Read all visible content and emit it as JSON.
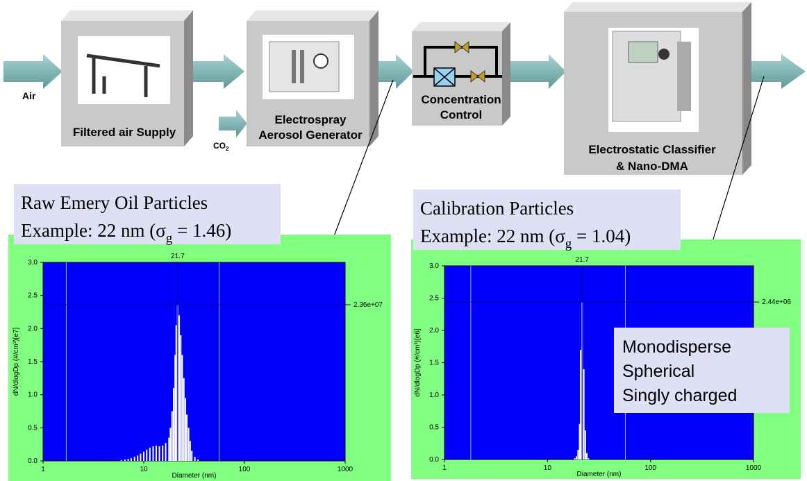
{
  "diagram": {
    "nodes": [
      {
        "lines": [
          "Filtered air Supply"
        ]
      },
      {
        "lines": [
          "Electrospray",
          "Aerosol Generator"
        ]
      },
      {
        "lines": [
          "Concentration",
          "Control"
        ]
      },
      {
        "lines": [
          "Electrostatic Classifier",
          "& Nano-DMA"
        ]
      }
    ],
    "inputs": {
      "air": "Air",
      "co2": [
        "CO",
        "2"
      ]
    }
  },
  "chart_data": [
    {
      "type": "bar",
      "title": "Raw Emery Oil Particles",
      "subtitle_parts": [
        "Example: 22 nm (σ",
        "g",
        " = 1.46)"
      ],
      "xlabel": "Diameter (nm)",
      "ylabel": "dN/dlogDp (#/cm³)[e7]",
      "xscale": "log",
      "xlim": [
        1,
        1000
      ],
      "xticks": [
        1,
        10,
        100,
        1000
      ],
      "ylim": [
        0,
        3
      ],
      "yticks": [
        {
          "value": 0,
          "label": "0.0"
        },
        {
          "value": 0.5,
          "label": "0.5"
        },
        {
          "value": 1,
          "label": "1.0"
        },
        {
          "value": 1.5,
          "label": "1.5"
        },
        {
          "value": 2,
          "label": "2.0"
        },
        {
          "value": 2.5,
          "label": "2.5"
        },
        {
          "value": 3,
          "label": "3.0"
        }
      ],
      "x": [
        6.0,
        6.5,
        7.0,
        7.5,
        8.1,
        8.7,
        9.3,
        10.0,
        10.7,
        11.5,
        12.4,
        13.3,
        14.3,
        15.4,
        16.5,
        17.8,
        18.4,
        19.1,
        19.8,
        20.5,
        21.0,
        21.7,
        22.5,
        23.3,
        24.1,
        25.0,
        25.9,
        26.8,
        27.9,
        28.9,
        30.0,
        32.2,
        34.6
      ],
      "values": [
        0.01,
        0.02,
        0.03,
        0.04,
        0.06,
        0.08,
        0.11,
        0.14,
        0.17,
        0.2,
        0.22,
        0.23,
        0.22,
        0.23,
        0.27,
        0.35,
        0.5,
        0.75,
        1.1,
        1.6,
        2.05,
        2.36,
        2.2,
        1.9,
        1.6,
        1.25,
        0.95,
        0.7,
        0.5,
        0.3,
        0.15,
        0.06,
        0.02
      ],
      "color": "#ffffff",
      "background": "#0000ff",
      "peak": {
        "x": 21.7
      },
      "level": {
        "value": 2.36,
        "label": "2.36e+07"
      },
      "cursors": [
        1.7,
        56
      ]
    },
    {
      "type": "bar",
      "title": "Calibration Particles",
      "subtitle_parts": [
        "Example: 22 nm (σ",
        "g",
        " = 1.04)"
      ],
      "xlabel": "Diameter (nm)",
      "ylabel": "dN/dlogDp (#/cm³)[e6]",
      "xscale": "log",
      "xlim": [
        1,
        1000
      ],
      "xticks": [
        1,
        10,
        100,
        1000
      ],
      "ylim": [
        0,
        3
      ],
      "yticks": [
        {
          "value": 0,
          "label": "0.0"
        },
        {
          "value": 0.5,
          "label": "0.5"
        },
        {
          "value": 1,
          "label": "1.0"
        },
        {
          "value": 1.5,
          "label": "1.5"
        },
        {
          "value": 2,
          "label": "2.0"
        },
        {
          "value": 2.5,
          "label": "2.5"
        },
        {
          "value": 3,
          "label": "3.0"
        }
      ],
      "x": [
        18.4,
        19.1,
        19.8,
        20.5,
        21.0,
        21.7,
        22.5,
        23.3,
        24.1,
        25.0
      ],
      "values": [
        0.02,
        0.05,
        0.15,
        0.55,
        1.7,
        2.44,
        1.4,
        0.45,
        0.1,
        0.02
      ],
      "color": "#ffffff",
      "background": "#0000ff",
      "peak": {
        "x": 21.7
      },
      "level": {
        "value": 2.44,
        "label": "2.44e+06"
      },
      "cursors": [
        1.8,
        57
      ],
      "note_lines": [
        "Monodisperse",
        "Spherical",
        "Singly charged"
      ]
    }
  ]
}
